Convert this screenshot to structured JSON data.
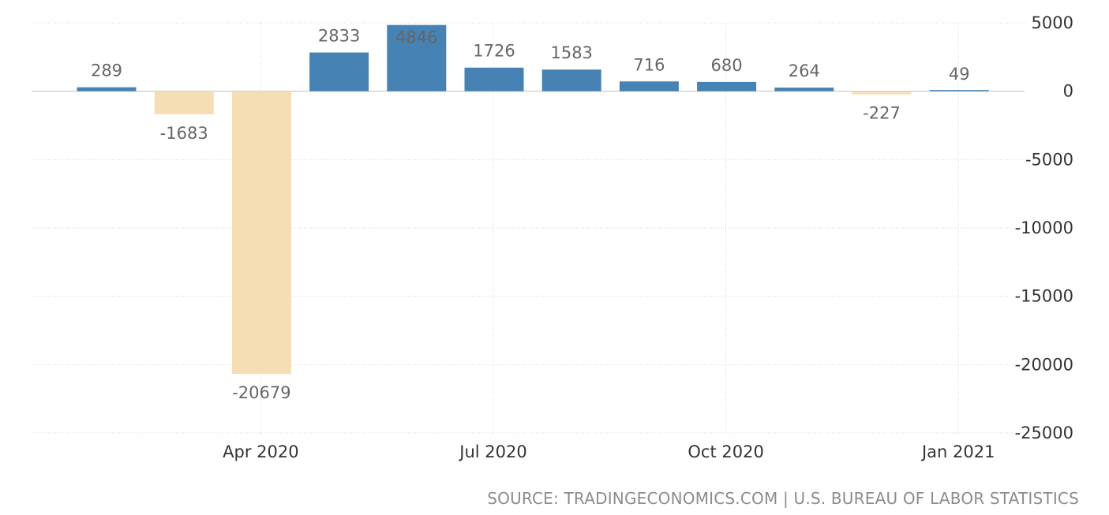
{
  "chart_data": {
    "type": "bar",
    "categories": [
      "Feb 2020",
      "Mar 2020",
      "Apr 2020",
      "May 2020",
      "Jun 2020",
      "Jul 2020",
      "Aug 2020",
      "Sep 2020",
      "Oct 2020",
      "Nov 2020",
      "Dec 2020",
      "Jan 2021"
    ],
    "values": [
      289,
      -1683,
      -20679,
      2833,
      4846,
      1726,
      1583,
      716,
      680,
      264,
      -227,
      49
    ],
    "data_labels": [
      "289",
      "-1683",
      "-20679",
      "2833",
      "4846",
      "1726",
      "1583",
      "716",
      "680",
      "264",
      "-227",
      "49"
    ],
    "x_ticks": [
      {
        "label": "Apr 2020",
        "category": "Apr 2020"
      },
      {
        "label": "Jul 2020",
        "category": "Jul 2020"
      },
      {
        "label": "Oct 2020",
        "category": "Oct 2020"
      },
      {
        "label": "Jan 2021",
        "category": "Jan 2021"
      }
    ],
    "y_ticks": [
      5000,
      0,
      -5000,
      -10000,
      -15000,
      -20000,
      -25000
    ],
    "ylim": [
      -25000,
      5000
    ],
    "y_axis_position": "right",
    "grid": true,
    "legend": false,
    "colors": {
      "positive": "#4682b4",
      "negative": "#f5deb3"
    }
  },
  "source": {
    "text": "SOURCE: TRADINGECONOMICS.COM | U.S. BUREAU OF LABOR STATISTICS"
  }
}
